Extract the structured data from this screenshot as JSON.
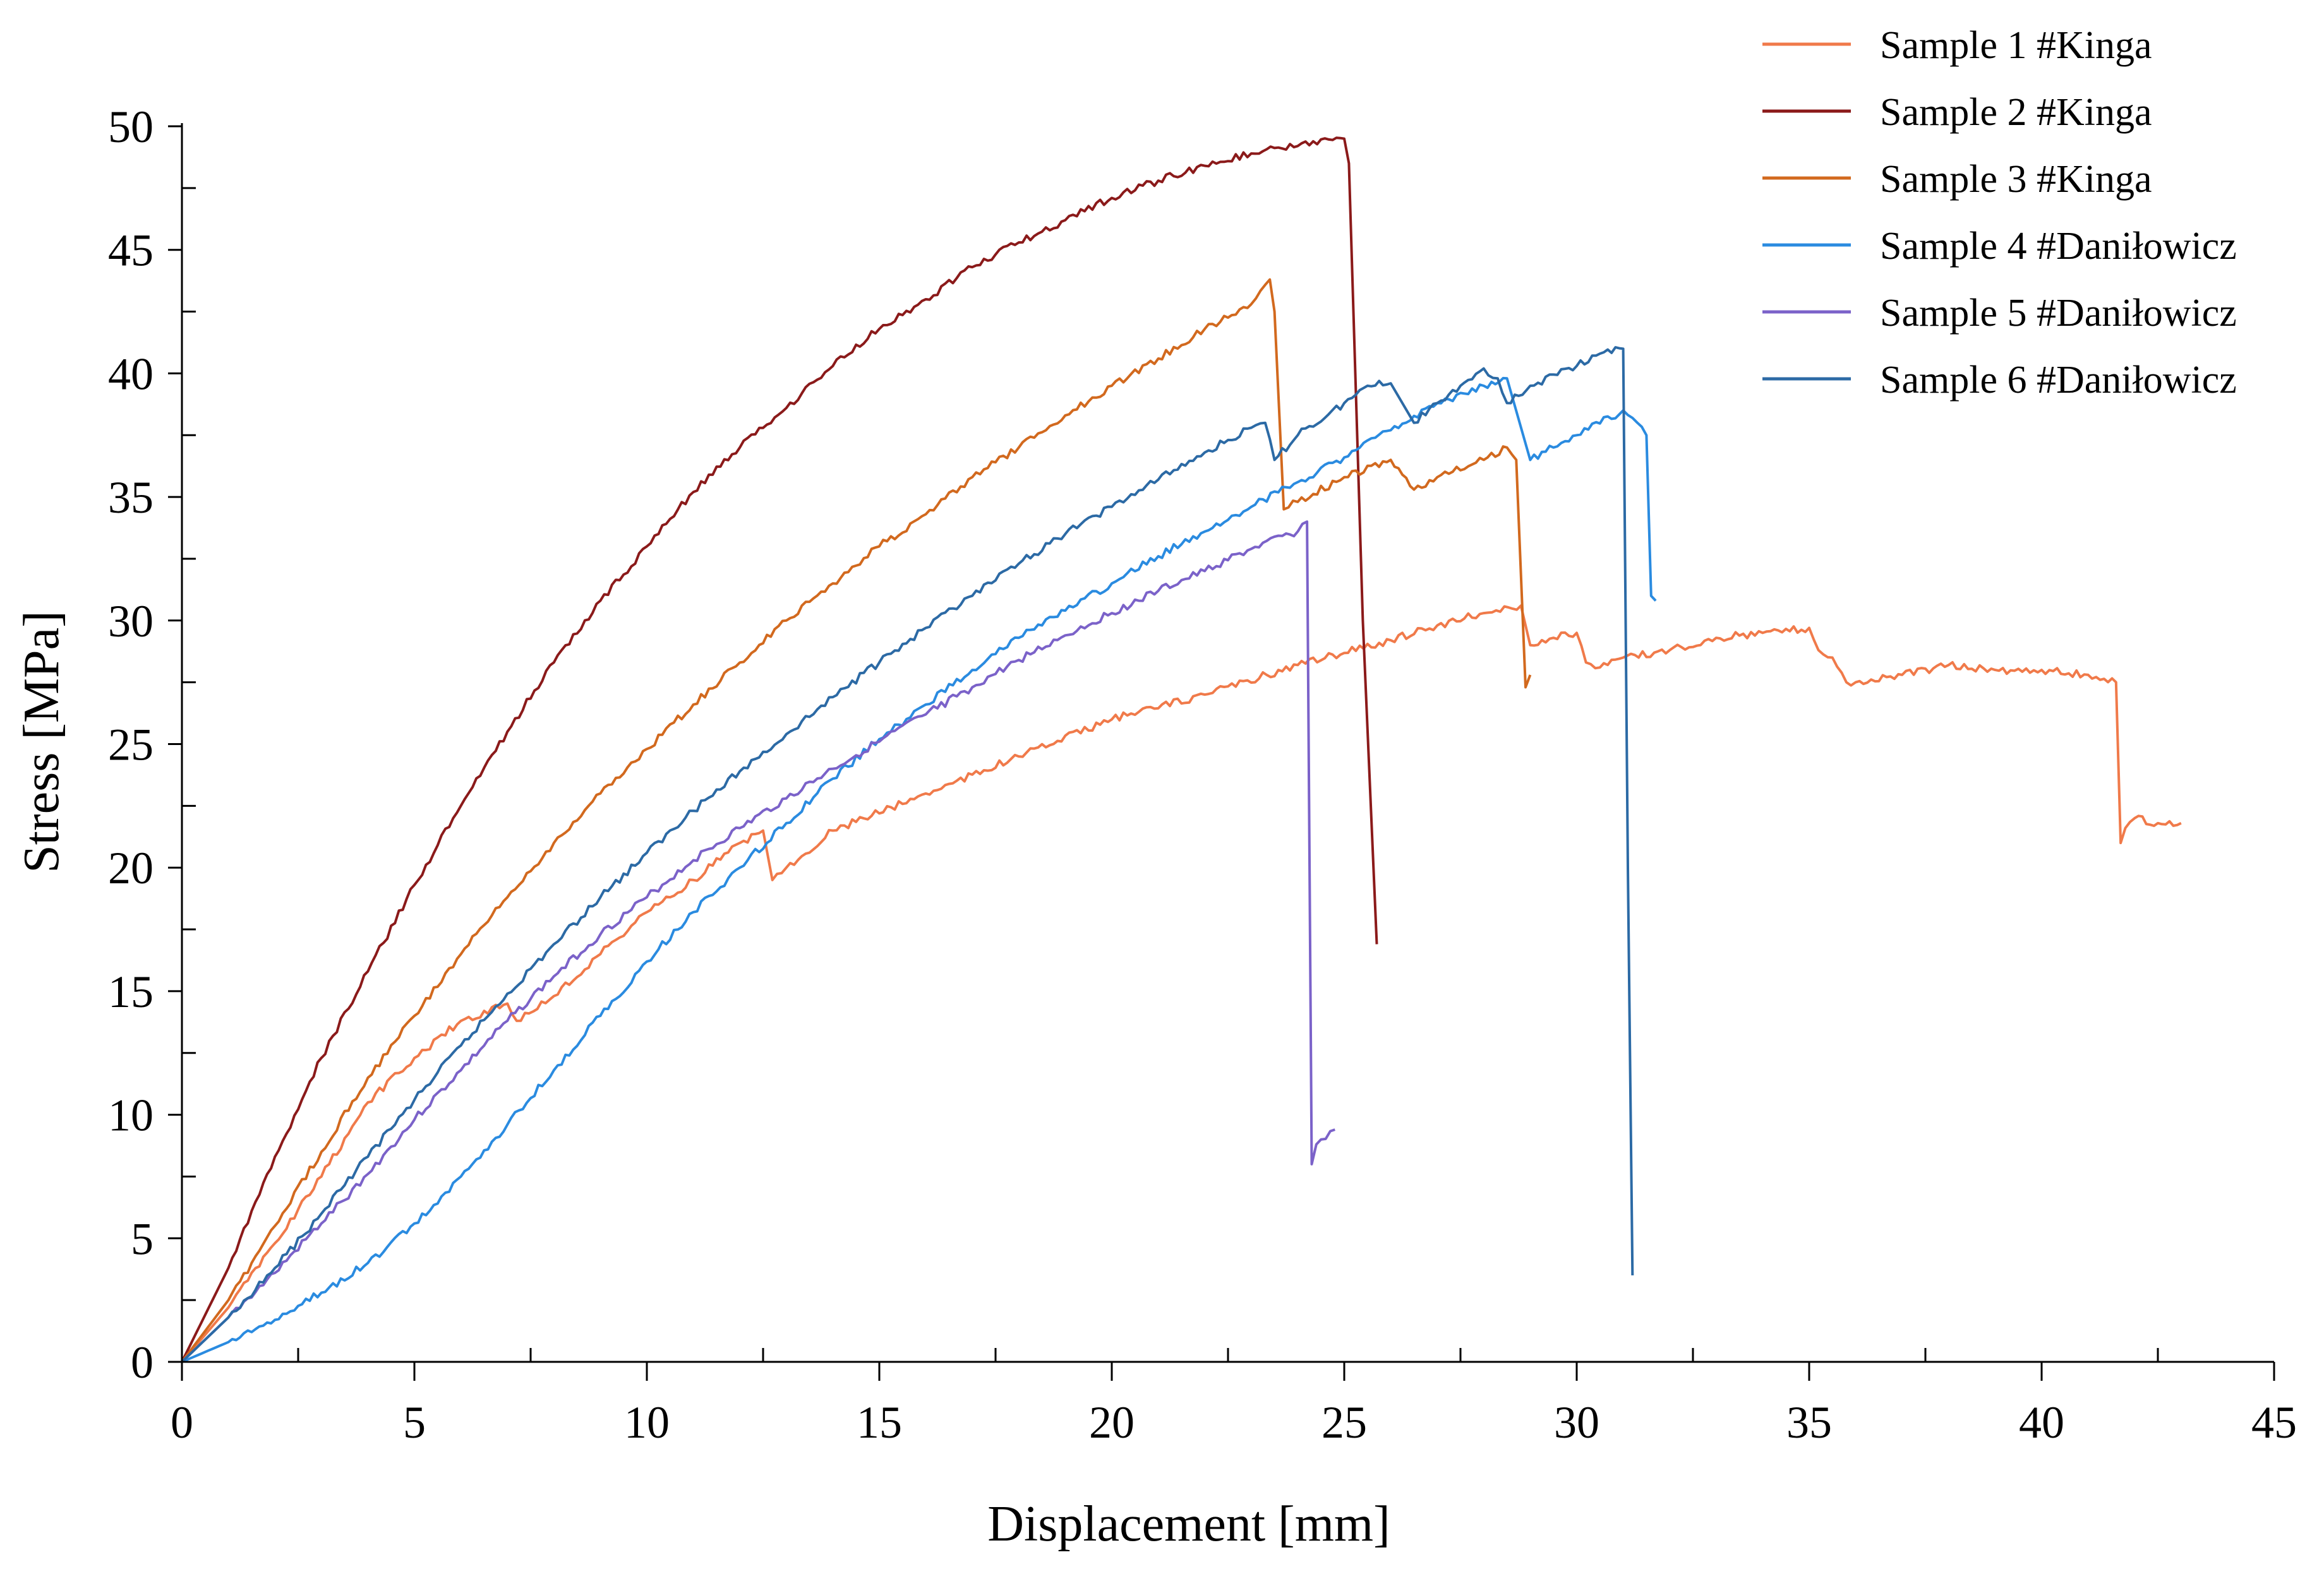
{
  "chart_data": {
    "type": "line",
    "title": "",
    "xlabel": "Displacement [mm]",
    "ylabel": "Stress [MPa]",
    "xlim": [
      0,
      45
    ],
    "ylim": [
      0,
      50
    ],
    "x_ticks": [
      0,
      5,
      10,
      15,
      20,
      25,
      30,
      35,
      40,
      45
    ],
    "x_tick_labels": [
      "0",
      "5",
      "10",
      "15",
      "20",
      "25",
      "30",
      "35",
      "40",
      "45"
    ],
    "y_ticks": [
      0,
      5,
      10,
      15,
      20,
      25,
      30,
      35,
      40,
      45,
      50
    ],
    "y_tick_labels": [
      "0",
      "5",
      "10",
      "15",
      "20",
      "25",
      "30",
      "35",
      "40",
      "45",
      "50"
    ],
    "grid": false,
    "legend_position": "top-right",
    "series": [
      {
        "name": "Sample 1 #Kinga",
        "color": "#f07a4a",
        "x": [
          0,
          1,
          2,
          3,
          4,
          5,
          6,
          7,
          7.2,
          8,
          9,
          10,
          11,
          12,
          12.5,
          12.7,
          13,
          14,
          16,
          18,
          20,
          22,
          24,
          26,
          27,
          28,
          28.8,
          29,
          29.5,
          30,
          30.2,
          30.5,
          31,
          32,
          33,
          34,
          35,
          35.2,
          35.5,
          35.8,
          36,
          37,
          38,
          39,
          40,
          41,
          41.6,
          41.7,
          41.8,
          42,
          42.5,
          43
        ],
        "y": [
          0,
          2.2,
          4.8,
          7.5,
          10.5,
          12.3,
          13.8,
          14.5,
          13.8,
          14.8,
          16.5,
          18.2,
          19.5,
          21.0,
          21.5,
          19.5,
          20.0,
          21.5,
          23.0,
          24.5,
          26.0,
          27.0,
          28.2,
          29.2,
          29.8,
          30.3,
          30.6,
          29.0,
          29.3,
          29.5,
          28.3,
          28.1,
          28.5,
          28.8,
          29.3,
          29.5,
          29.7,
          28.8,
          28.5,
          27.5,
          27.5,
          27.8,
          28.2,
          28.0,
          28.0,
          27.8,
          27.5,
          21.0,
          21.6,
          22.0,
          21.8,
          21.8
        ]
      },
      {
        "name": "Sample 2 #Kinga",
        "color": "#8b1a1a",
        "x": [
          0,
          1,
          2,
          3,
          4,
          5,
          6,
          7,
          8,
          9,
          10,
          11,
          12,
          13,
          14,
          15,
          16,
          17,
          18,
          19,
          20,
          21,
          22,
          23,
          24,
          25,
          25.1,
          25.4,
          25.7
        ],
        "y": [
          0,
          3.8,
          8.3,
          12.3,
          15.8,
          19.3,
          22.5,
          25.5,
          28.3,
          30.8,
          33.0,
          35.2,
          37.0,
          38.6,
          40.3,
          41.8,
          43.0,
          44.3,
          45.3,
          46.2,
          47.1,
          47.8,
          48.4,
          48.9,
          49.2,
          49.5,
          48.5,
          30.0,
          16.9
        ]
      },
      {
        "name": "Sample 3 #Kinga",
        "color": "#d2691e",
        "x": [
          0,
          1,
          2,
          3,
          4,
          5,
          6,
          7,
          8,
          9,
          10,
          11,
          12,
          13,
          14,
          15,
          16,
          17,
          18,
          19,
          20,
          21,
          22,
          23,
          23.4,
          23.5,
          23.7,
          24,
          25,
          26,
          26.5,
          27,
          28,
          28.5,
          28.7,
          28.9,
          29
        ],
        "y": [
          0,
          2.5,
          5.5,
          8.5,
          11.5,
          14.0,
          16.5,
          18.8,
          21.0,
          23.0,
          24.8,
          26.6,
          28.3,
          30.0,
          31.5,
          33.0,
          34.3,
          35.8,
          37.0,
          38.3,
          39.5,
          40.6,
          41.8,
          42.8,
          43.8,
          42.5,
          34.5,
          34.8,
          35.8,
          36.5,
          35.3,
          35.8,
          36.5,
          37.0,
          36.5,
          27.3,
          27.8
        ]
      },
      {
        "name": "Sample 4 #Daniłowicz",
        "color": "#2a8be0",
        "x": [
          0,
          1,
          2,
          3,
          4,
          5,
          6,
          7,
          8,
          9,
          10,
          11,
          12,
          13,
          14,
          15,
          16,
          17,
          18,
          19,
          20,
          21,
          22,
          23,
          24,
          25,
          26,
          27,
          28,
          28.5,
          29,
          29.5,
          30,
          31,
          31.2,
          31.5,
          31.6,
          31.7
        ],
        "y": [
          0,
          0.8,
          1.7,
          2.8,
          4.0,
          5.6,
          7.5,
          9.6,
          11.8,
          14.0,
          16.2,
          18.2,
          20.0,
          21.8,
          23.6,
          25.2,
          26.6,
          28.0,
          29.3,
          30.4,
          31.5,
          32.6,
          33.6,
          34.6,
          35.6,
          36.6,
          37.7,
          38.8,
          39.5,
          39.8,
          36.5,
          37.0,
          37.5,
          38.5,
          38.2,
          37.5,
          31.0,
          30.8
        ]
      },
      {
        "name": "Sample 5 #Daniłowicz",
        "color": "#7b62c9",
        "x": [
          0,
          1,
          2,
          3,
          4,
          5,
          6,
          7,
          8,
          9,
          10,
          11,
          12,
          13,
          14,
          15,
          16,
          17,
          18,
          19,
          20,
          21,
          22,
          23,
          24,
          24.2,
          24.3,
          24.4,
          24.5,
          24.8
        ],
        "y": [
          0,
          1.8,
          3.6,
          5.6,
          7.6,
          9.8,
          11.8,
          13.8,
          15.6,
          17.3,
          18.8,
          20.3,
          21.6,
          22.8,
          24.0,
          25.1,
          26.2,
          27.3,
          28.4,
          29.4,
          30.3,
          31.2,
          32.0,
          32.9,
          33.6,
          34.0,
          8.0,
          8.8,
          9.0,
          9.4
        ]
      },
      {
        "name": "Sample 6 #Daniłowicz",
        "color": "#2c6aa5",
        "x": [
          0,
          1,
          2,
          3,
          4,
          5,
          6,
          7,
          8,
          9,
          10,
          11,
          12,
          13,
          14,
          15,
          16,
          17,
          18,
          19,
          20,
          21,
          22,
          23,
          23.3,
          23.5,
          24,
          25,
          25.5,
          26,
          26.5,
          27,
          27.5,
          28,
          28.3,
          28.5,
          29,
          30,
          30.5,
          31,
          31.1,
          31.2
        ],
        "y": [
          0,
          1.8,
          3.8,
          6.0,
          8.3,
          10.6,
          12.8,
          14.9,
          16.9,
          18.8,
          20.6,
          22.3,
          23.9,
          25.4,
          26.9,
          28.3,
          29.7,
          31.0,
          32.3,
          33.5,
          34.6,
          35.7,
          36.8,
          37.8,
          38.0,
          36.5,
          37.5,
          38.8,
          39.5,
          39.6,
          38.0,
          38.8,
          39.5,
          40.2,
          39.8,
          38.8,
          39.5,
          40.3,
          40.8,
          41.0,
          20.0,
          3.5
        ]
      }
    ]
  }
}
